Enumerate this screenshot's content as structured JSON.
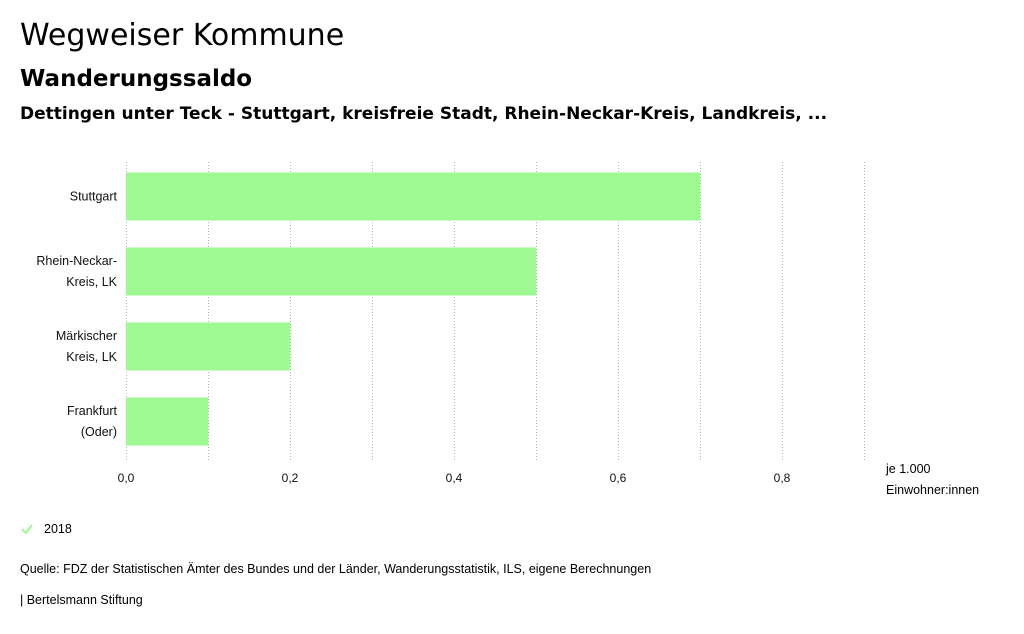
{
  "header": {
    "title": "Wegweiser Kommune",
    "subtitle": "Wanderungssaldo",
    "region": "Dettingen unter Teck - Stuttgart, kreisfreie Stadt, Rhein-Neckar-Kreis, Landkreis, ..."
  },
  "chart_data": {
    "type": "bar",
    "orientation": "horizontal",
    "categories": [
      [
        "Stuttgart"
      ],
      [
        "Rhein-Neckar-",
        "Kreis, LK"
      ],
      [
        "Märkischer",
        "Kreis, LK"
      ],
      [
        "Frankfurt",
        "(Oder)"
      ]
    ],
    "series": [
      {
        "name": "2018",
        "values": [
          0.7,
          0.5,
          0.2,
          0.1
        ]
      }
    ],
    "xlim": [
      0,
      0.9
    ],
    "xticks": [
      "0,0",
      "0,2",
      "0,4",
      "0,6",
      "0,8"
    ],
    "gridlines": true,
    "bar_color": "#9ef993"
  },
  "unit": {
    "line1": "je 1.000",
    "line2": "Einwohner:innen"
  },
  "legend": {
    "label": "2018",
    "color": "#9ef993"
  },
  "footer": {
    "source": "Quelle: FDZ der Statistischen Ämter des Bundes und der Länder, Wanderungsstatistik, ILS, eigene Berechnungen",
    "credit": "| Bertelsmann Stiftung"
  }
}
